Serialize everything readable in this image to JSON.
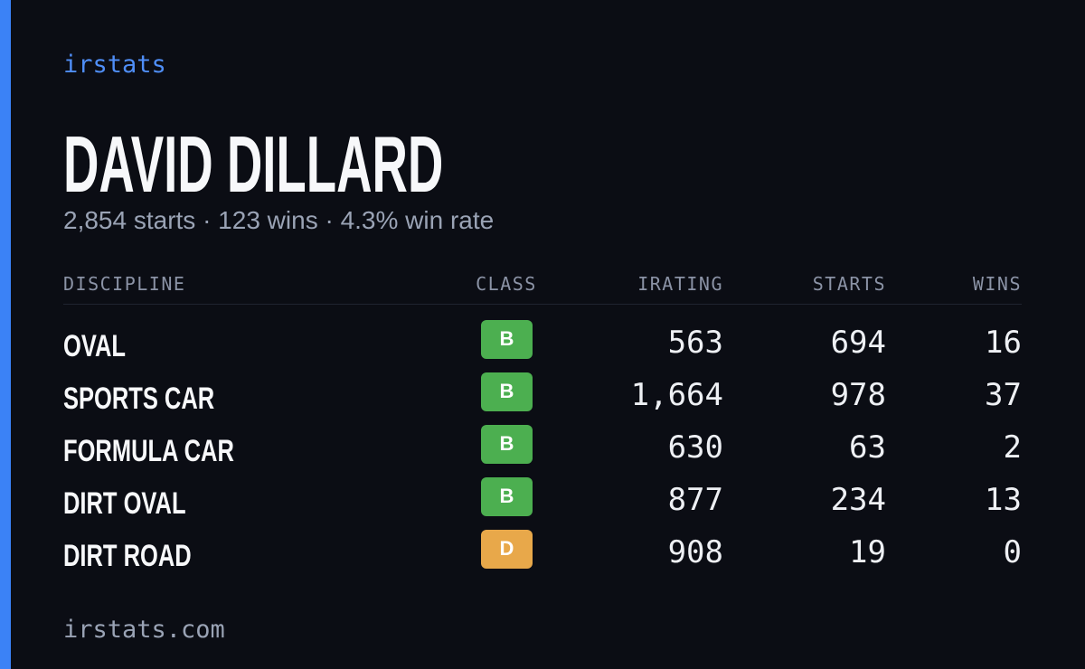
{
  "brand": "irstats",
  "driver": {
    "name": "DAVID DILLARD",
    "summary": "2,854 starts · 123 wins · 4.3% win rate"
  },
  "table": {
    "headers": [
      "DISCIPLINE",
      "CLASS",
      "IRATING",
      "STARTS",
      "WINS"
    ],
    "rows": [
      {
        "discipline": "OVAL",
        "class": "B",
        "class_color": "#4caf50",
        "irating": "563",
        "starts": "694",
        "wins": "16"
      },
      {
        "discipline": "SPORTS CAR",
        "class": "B",
        "class_color": "#4caf50",
        "irating": "1,664",
        "starts": "978",
        "wins": "37"
      },
      {
        "discipline": "FORMULA CAR",
        "class": "B",
        "class_color": "#4caf50",
        "irating": "630",
        "starts": "63",
        "wins": "2"
      },
      {
        "discipline": "DIRT OVAL",
        "class": "B",
        "class_color": "#4caf50",
        "irating": "877",
        "starts": "234",
        "wins": "13"
      },
      {
        "discipline": "DIRT ROAD",
        "class": "D",
        "class_color": "#e8a84a",
        "irating": "908",
        "starts": "19",
        "wins": "0"
      }
    ]
  },
  "footer": "irstats.com"
}
